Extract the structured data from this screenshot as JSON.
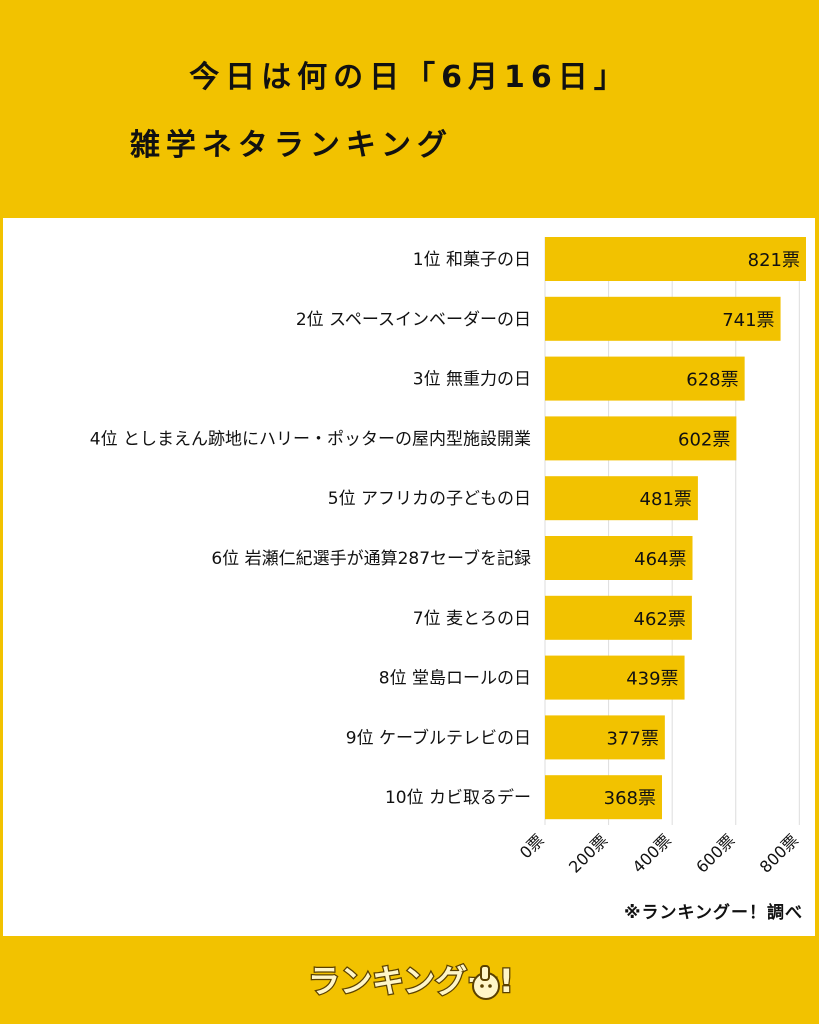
{
  "header": {
    "title_line1": "今日は何の日「6月16日」",
    "title_line2": "雑学ネタランキング"
  },
  "source_note": "※ランキングー！調べ",
  "logo": {
    "text": "ランキングー!",
    "icon": "thumbs-up-character-icon"
  },
  "colors": {
    "background": "#F2C200",
    "bar": "#F2C200",
    "panel": "#FFFFFF",
    "text": "#111111",
    "grid": "#DDDDDD"
  },
  "chart_data": {
    "type": "bar",
    "orientation": "horizontal",
    "categories": [
      "1位 和菓子の日",
      "2位 スペースインベーダーの日",
      "3位 無重力の日",
      "4位 としまえん跡地にハリー・ポッターの屋内型施設開業",
      "5位 アフリカの子どもの日",
      "6位 岩瀬仁紀選手が通算287セーブを記録",
      "7位 麦とろの日",
      "8位 堂島ロールの日",
      "9位 ケーブルテレビの日",
      "10位 カビ取るデー"
    ],
    "values": [
      821,
      741,
      628,
      602,
      481,
      464,
      462,
      439,
      377,
      368
    ],
    "value_labels": [
      "821票",
      "741票",
      "628票",
      "602票",
      "481票",
      "464票",
      "462票",
      "439票",
      "377票",
      "368票"
    ],
    "xlim": [
      0,
      821
    ],
    "xticks": [
      0,
      200,
      400,
      600,
      800
    ],
    "xtick_labels": [
      "0票",
      "200票",
      "400票",
      "600票",
      "800票"
    ],
    "grid": true,
    "title": "",
    "xlabel": "",
    "ylabel": ""
  }
}
